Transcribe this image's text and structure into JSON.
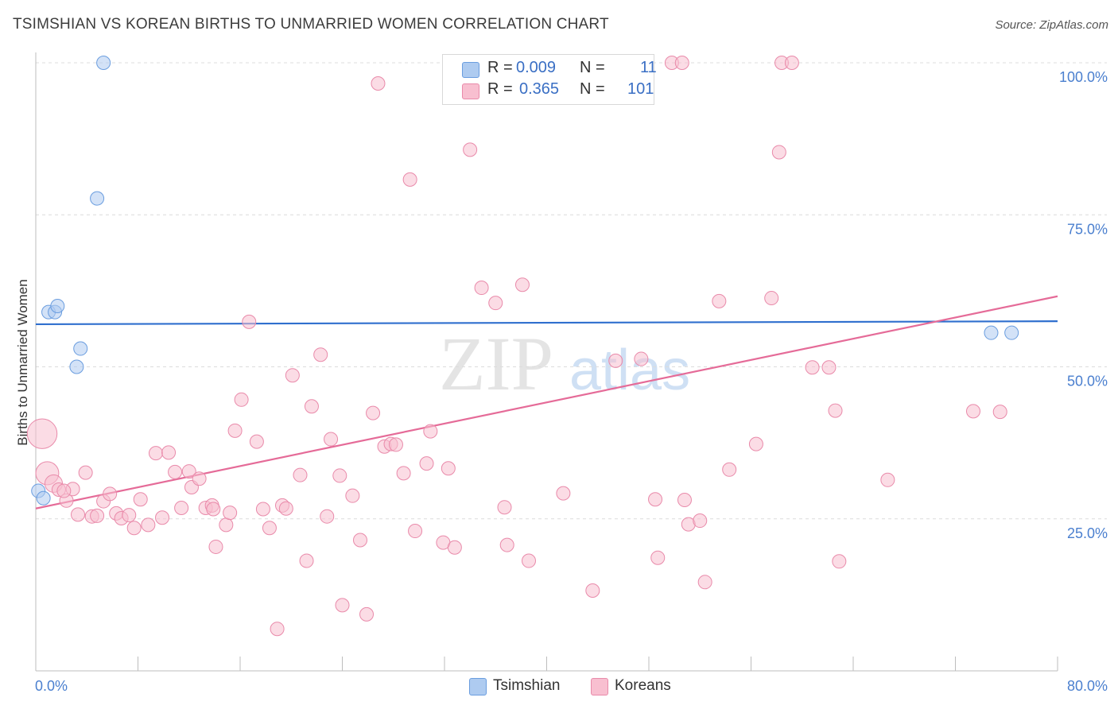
{
  "title": "TSIMSHIAN VS KOREAN BIRTHS TO UNMARRIED WOMEN CORRELATION CHART",
  "source": "Source: ZipAtlas.com",
  "watermark": {
    "zip": "ZIP",
    "atlas": "atlas"
  },
  "legend": {
    "r_label": "R =",
    "n_label": "N =",
    "series": [
      {
        "name": "Tsimshian",
        "r": "0.009",
        "n": "11",
        "fill": "#aecbf0",
        "stroke": "#6a9ddf"
      },
      {
        "name": "Koreans",
        "r": "0.365",
        "n": "101",
        "fill": "#f8bfd0",
        "stroke": "#e98aaa"
      }
    ]
  },
  "chart_data": {
    "type": "scatter",
    "title": "TSIMSHIAN VS KOREAN BIRTHS TO UNMARRIED WOMEN CORRELATION CHART",
    "xlabel": "",
    "ylabel": "Births to Unmarried Women",
    "xlim": [
      0,
      80
    ],
    "ylim": [
      0,
      103
    ],
    "x_tick_labels": [
      "0.0%",
      "80.0%"
    ],
    "y_ticks": [
      25,
      50,
      75,
      100
    ],
    "y_tick_labels": [
      "25.0%",
      "50.0%",
      "75.0%",
      "100.0%"
    ],
    "x_minor_ticks": [
      0,
      8,
      16,
      24,
      32,
      40,
      48,
      56,
      64,
      72,
      80
    ],
    "grid": true,
    "series": [
      {
        "name": "Tsimshian",
        "color": "#6a9ddf",
        "fill": "#aecbf0",
        "trend": {
          "x": [
            0,
            80
          ],
          "y": [
            57.0,
            57.5
          ],
          "color": "#2f6fce"
        },
        "points": [
          {
            "x": 0.2,
            "y": 29.6,
            "s": 1
          },
          {
            "x": 0.6,
            "y": 28.4,
            "s": 1
          },
          {
            "x": 1.0,
            "y": 59.0,
            "s": 1
          },
          {
            "x": 1.5,
            "y": 59.0,
            "s": 1
          },
          {
            "x": 1.7,
            "y": 60.0,
            "s": 1
          },
          {
            "x": 3.2,
            "y": 50.0,
            "s": 1
          },
          {
            "x": 3.5,
            "y": 53.0,
            "s": 1
          },
          {
            "x": 4.8,
            "y": 77.7,
            "s": 1
          },
          {
            "x": 5.3,
            "y": 100.0,
            "s": 1
          },
          {
            "x": 74.8,
            "y": 55.6,
            "s": 1
          },
          {
            "x": 76.4,
            "y": 55.6,
            "s": 1
          }
        ]
      },
      {
        "name": "Koreans",
        "color": "#e98aaa",
        "fill": "#f8bfd0",
        "trend": {
          "x": [
            0,
            80
          ],
          "y": [
            26.7,
            61.6
          ],
          "color": "#e56b98"
        },
        "points": [
          {
            "x": 0.5,
            "y": 39.0,
            "s": 2.2
          },
          {
            "x": 0.9,
            "y": 32.5,
            "s": 1.7
          },
          {
            "x": 1.4,
            "y": 30.8,
            "s": 1.3
          },
          {
            "x": 1.8,
            "y": 29.8,
            "s": 1
          },
          {
            "x": 2.4,
            "y": 28.0,
            "s": 1
          },
          {
            "x": 2.9,
            "y": 29.9,
            "s": 1
          },
          {
            "x": 3.3,
            "y": 25.7,
            "s": 1
          },
          {
            "x": 3.9,
            "y": 32.6,
            "s": 1
          },
          {
            "x": 4.4,
            "y": 25.4,
            "s": 1
          },
          {
            "x": 4.8,
            "y": 25.5,
            "s": 1
          },
          {
            "x": 5.3,
            "y": 27.9,
            "s": 1
          },
          {
            "x": 5.8,
            "y": 29.1,
            "s": 1
          },
          {
            "x": 6.3,
            "y": 25.9,
            "s": 1
          },
          {
            "x": 6.7,
            "y": 25.1,
            "s": 1
          },
          {
            "x": 7.3,
            "y": 25.6,
            "s": 1
          },
          {
            "x": 7.7,
            "y": 23.5,
            "s": 1
          },
          {
            "x": 8.2,
            "y": 28.2,
            "s": 1
          },
          {
            "x": 8.8,
            "y": 24.0,
            "s": 1
          },
          {
            "x": 9.4,
            "y": 35.8,
            "s": 1
          },
          {
            "x": 9.9,
            "y": 25.2,
            "s": 1
          },
          {
            "x": 10.4,
            "y": 35.9,
            "s": 1
          },
          {
            "x": 10.9,
            "y": 32.7,
            "s": 1
          },
          {
            "x": 11.4,
            "y": 26.8,
            "s": 1
          },
          {
            "x": 12.0,
            "y": 32.8,
            "s": 1
          },
          {
            "x": 12.2,
            "y": 30.2,
            "s": 1
          },
          {
            "x": 12.8,
            "y": 31.6,
            "s": 1
          },
          {
            "x": 13.3,
            "y": 26.8,
            "s": 1
          },
          {
            "x": 13.8,
            "y": 27.2,
            "s": 1
          },
          {
            "x": 14.1,
            "y": 20.4,
            "s": 1
          },
          {
            "x": 14.9,
            "y": 24.0,
            "s": 1
          },
          {
            "x": 15.2,
            "y": 26.0,
            "s": 1
          },
          {
            "x": 15.6,
            "y": 39.5,
            "s": 1
          },
          {
            "x": 16.1,
            "y": 44.6,
            "s": 1
          },
          {
            "x": 16.7,
            "y": 57.4,
            "s": 1
          },
          {
            "x": 17.3,
            "y": 37.7,
            "s": 1
          },
          {
            "x": 17.8,
            "y": 26.6,
            "s": 1
          },
          {
            "x": 18.3,
            "y": 23.5,
            "s": 1
          },
          {
            "x": 18.9,
            "y": 6.9,
            "s": 1
          },
          {
            "x": 19.3,
            "y": 27.2,
            "s": 1
          },
          {
            "x": 19.6,
            "y": 26.7,
            "s": 1
          },
          {
            "x": 20.1,
            "y": 48.6,
            "s": 1
          },
          {
            "x": 20.7,
            "y": 32.2,
            "s": 1
          },
          {
            "x": 21.2,
            "y": 18.1,
            "s": 1
          },
          {
            "x": 21.6,
            "y": 43.5,
            "s": 1
          },
          {
            "x": 22.3,
            "y": 52.0,
            "s": 1
          },
          {
            "x": 22.8,
            "y": 25.4,
            "s": 1
          },
          {
            "x": 23.1,
            "y": 38.1,
            "s": 1
          },
          {
            "x": 23.8,
            "y": 32.1,
            "s": 1
          },
          {
            "x": 24.0,
            "y": 10.8,
            "s": 1
          },
          {
            "x": 24.8,
            "y": 28.8,
            "s": 1
          },
          {
            "x": 25.4,
            "y": 21.5,
            "s": 1
          },
          {
            "x": 25.9,
            "y": 9.3,
            "s": 1
          },
          {
            "x": 26.4,
            "y": 42.4,
            "s": 1
          },
          {
            "x": 26.8,
            "y": 96.6,
            "s": 1
          },
          {
            "x": 27.3,
            "y": 36.9,
            "s": 1
          },
          {
            "x": 27.8,
            "y": 37.3,
            "s": 1
          },
          {
            "x": 28.2,
            "y": 37.2,
            "s": 1
          },
          {
            "x": 28.8,
            "y": 32.5,
            "s": 1
          },
          {
            "x": 29.3,
            "y": 80.8,
            "s": 1
          },
          {
            "x": 29.7,
            "y": 23.0,
            "s": 1
          },
          {
            "x": 30.6,
            "y": 34.1,
            "s": 1
          },
          {
            "x": 30.9,
            "y": 39.4,
            "s": 1
          },
          {
            "x": 31.9,
            "y": 21.1,
            "s": 1
          },
          {
            "x": 32.3,
            "y": 33.3,
            "s": 1
          },
          {
            "x": 32.8,
            "y": 20.3,
            "s": 1
          },
          {
            "x": 34.0,
            "y": 85.7,
            "s": 1
          },
          {
            "x": 34.9,
            "y": 63.0,
            "s": 1
          },
          {
            "x": 36.0,
            "y": 60.5,
            "s": 1
          },
          {
            "x": 36.7,
            "y": 26.9,
            "s": 1
          },
          {
            "x": 36.9,
            "y": 20.7,
            "s": 1
          },
          {
            "x": 38.1,
            "y": 63.5,
            "s": 1
          },
          {
            "x": 38.6,
            "y": 18.1,
            "s": 1
          },
          {
            "x": 40.2,
            "y": 100.0,
            "s": 1
          },
          {
            "x": 41.3,
            "y": 29.2,
            "s": 1
          },
          {
            "x": 43.6,
            "y": 13.2,
            "s": 1
          },
          {
            "x": 45.4,
            "y": 51.0,
            "s": 1
          },
          {
            "x": 47.4,
            "y": 51.3,
            "s": 1
          },
          {
            "x": 48.5,
            "y": 28.2,
            "s": 1
          },
          {
            "x": 48.7,
            "y": 18.6,
            "s": 1
          },
          {
            "x": 49.8,
            "y": 100.0,
            "s": 1
          },
          {
            "x": 50.6,
            "y": 100.0,
            "s": 1
          },
          {
            "x": 50.8,
            "y": 28.1,
            "s": 1
          },
          {
            "x": 51.1,
            "y": 24.1,
            "s": 1
          },
          {
            "x": 52.0,
            "y": 24.7,
            "s": 1
          },
          {
            "x": 52.4,
            "y": 14.6,
            "s": 1
          },
          {
            "x": 53.5,
            "y": 60.8,
            "s": 1
          },
          {
            "x": 54.3,
            "y": 33.1,
            "s": 1
          },
          {
            "x": 56.4,
            "y": 37.3,
            "s": 1
          },
          {
            "x": 57.6,
            "y": 61.3,
            "s": 1
          },
          {
            "x": 58.2,
            "y": 85.3,
            "s": 1
          },
          {
            "x": 58.4,
            "y": 100.0,
            "s": 1
          },
          {
            "x": 59.2,
            "y": 100.0,
            "s": 1
          },
          {
            "x": 60.8,
            "y": 49.9,
            "s": 1
          },
          {
            "x": 62.1,
            "y": 49.9,
            "s": 1
          },
          {
            "x": 62.6,
            "y": 42.8,
            "s": 1
          },
          {
            "x": 62.9,
            "y": 18.0,
            "s": 1
          },
          {
            "x": 66.7,
            "y": 31.4,
            "s": 1
          },
          {
            "x": 73.4,
            "y": 42.7,
            "s": 1
          },
          {
            "x": 75.5,
            "y": 42.6,
            "s": 1
          },
          {
            "x": 13.9,
            "y": 26.6,
            "s": 1
          },
          {
            "x": 2.2,
            "y": 29.6,
            "s": 1
          }
        ]
      }
    ]
  }
}
